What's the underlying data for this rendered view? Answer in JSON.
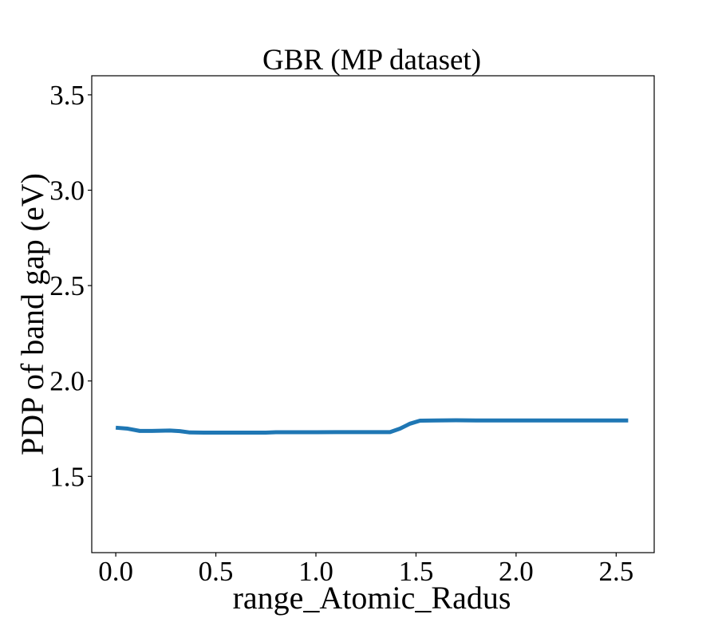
{
  "chart_data": {
    "type": "line",
    "title": "GBR (MP dataset)",
    "xlabel": "range_Atomic_Radus",
    "ylabel": "PDP of band gap (eV)",
    "xlim": [
      -0.12,
      2.69
    ],
    "ylim": [
      1.1,
      3.6
    ],
    "xticks": [
      0.0,
      0.5,
      1.0,
      1.5,
      2.0,
      2.5
    ],
    "xtick_labels": [
      "0.0",
      "0.5",
      "1.0",
      "1.5",
      "2.0",
      "2.5"
    ],
    "yticks": [
      1.5,
      2.0,
      2.5,
      3.0,
      3.5
    ],
    "ytick_labels": [
      "1.5",
      "2.0",
      "2.5",
      "3.0",
      "3.5"
    ],
    "grid": false,
    "series": [
      {
        "color": "#1f77b4",
        "x": [
          0.0,
          0.06,
          0.12,
          0.18,
          0.27,
          0.32,
          0.37,
          0.45,
          0.55,
          0.65,
          0.75,
          0.8,
          0.9,
          1.0,
          1.1,
          1.2,
          1.3,
          1.37,
          1.42,
          1.47,
          1.52,
          1.6,
          1.7,
          1.8,
          2.0,
          2.2,
          2.4,
          2.56
        ],
        "y": [
          1.755,
          1.75,
          1.738,
          1.738,
          1.74,
          1.737,
          1.73,
          1.729,
          1.729,
          1.729,
          1.729,
          1.731,
          1.731,
          1.731,
          1.732,
          1.732,
          1.732,
          1.732,
          1.75,
          1.776,
          1.792,
          1.793,
          1.794,
          1.793,
          1.793,
          1.793,
          1.793,
          1.793
        ]
      }
    ]
  }
}
